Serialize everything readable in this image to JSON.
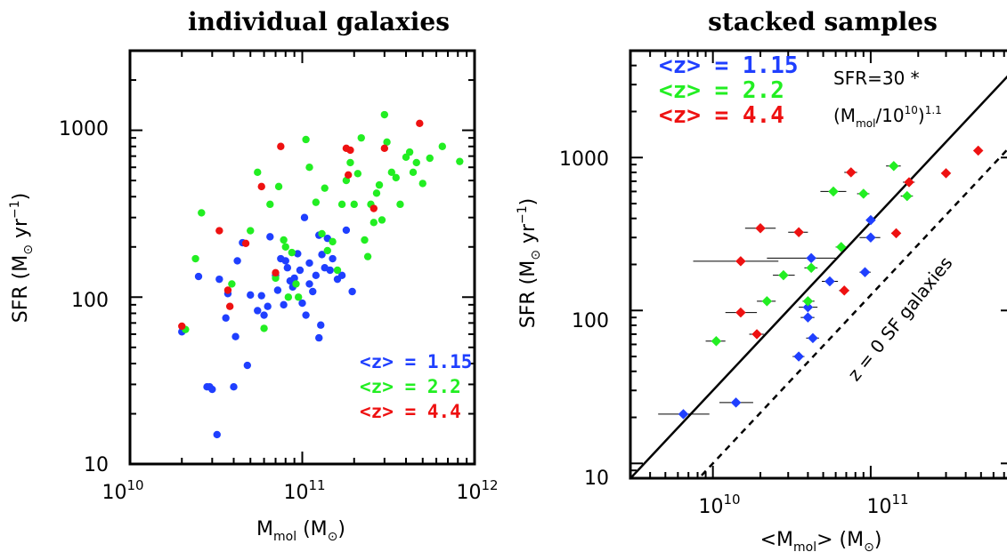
{
  "chart_data": [
    {
      "type": "scatter",
      "title": "individual galaxies",
      "xlabel": "M_mol (M_⊙)",
      "ylabel": "SFR (M_⊙ yr^-1)",
      "x_scale": "log",
      "y_scale": "log",
      "xlim": [
        10000000000.0,
        1000000000000.0
      ],
      "ylim": [
        10,
        3000
      ],
      "x_ticks": [
        "10^10",
        "10^11",
        "10^12"
      ],
      "y_ticks": [
        "10",
        "100",
        "1000"
      ],
      "legend": {
        "placement": "bottom-right",
        "entries": [
          "<z> = 1.15",
          "<z> = 2.2",
          "<z> = 4.4"
        ]
      },
      "series": [
        {
          "name": "<z> = 1.15",
          "color": "#1f3fff",
          "points": [
            [
              20000000000.0,
              62
            ],
            [
              25000000000.0,
              133
            ],
            [
              28000000000.0,
              29
            ],
            [
              29000000000.0,
              29
            ],
            [
              30000000000.0,
              28
            ],
            [
              32000000000.0,
              15
            ],
            [
              33000000000.0,
              128
            ],
            [
              36000000000.0,
              75
            ],
            [
              37000000000.0,
              105
            ],
            [
              40000000000.0,
              29
            ],
            [
              41000000000.0,
              58
            ],
            [
              42000000000.0,
              165
            ],
            [
              45000000000.0,
              212
            ],
            [
              48000000000.0,
              39
            ],
            [
              50000000000.0,
              103
            ],
            [
              55000000000.0,
              83
            ],
            [
              58000000000.0,
              102
            ],
            [
              60000000000.0,
              78
            ],
            [
              63000000000.0,
              88
            ],
            [
              65000000000.0,
              230
            ],
            [
              70000000000.0,
              135
            ],
            [
              72000000000.0,
              110
            ],
            [
              75000000000.0,
              170
            ],
            [
              78000000000.0,
              90
            ],
            [
              82000000000.0,
              150
            ],
            [
              85000000000.0,
              125
            ],
            [
              88000000000.0,
              115
            ],
            [
              90000000000.0,
              130
            ],
            [
              94000000000.0,
              182
            ],
            [
              97000000000.0,
              145
            ],
            [
              100000000000.0,
              92
            ],
            [
              103000000000.0,
              300
            ],
            [
              105000000000.0,
              78
            ],
            [
              110000000000.0,
              160
            ],
            [
              115000000000.0,
              108
            ],
            [
              120000000000.0,
              135
            ],
            [
              125000000000.0,
              57
            ],
            [
              128000000000.0,
              68
            ],
            [
              130000000000.0,
              180
            ],
            [
              135000000000.0,
              150
            ],
            [
              140000000000.0,
              225
            ],
            [
              145000000000.0,
              145
            ],
            [
              150000000000.0,
              170
            ],
            [
              160000000000.0,
              128
            ],
            [
              170000000000.0,
              135
            ],
            [
              180000000000.0,
              252
            ],
            [
              195000000000.0,
              108
            ],
            [
              125000000000.0,
              235
            ],
            [
              80000000000.0,
              165
            ],
            [
              110000000000.0,
              120
            ]
          ]
        },
        {
          "name": "<z> = 2.2",
          "color": "#22ee22",
          "points": [
            [
              21000000000.0,
              64
            ],
            [
              24000000000.0,
              170
            ],
            [
              26000000000.0,
              320
            ],
            [
              39000000000.0,
              120
            ],
            [
              50000000000.0,
              250
            ],
            [
              55000000000.0,
              560
            ],
            [
              60000000000.0,
              65
            ],
            [
              65000000000.0,
              360
            ],
            [
              70000000000.0,
              130
            ],
            [
              73000000000.0,
              460
            ],
            [
              78000000000.0,
              220
            ],
            [
              80000000000.0,
              200
            ],
            [
              83000000000.0,
              100
            ],
            [
              87000000000.0,
              185
            ],
            [
              92000000000.0,
              120
            ],
            [
              95000000000.0,
              100
            ],
            [
              105000000000.0,
              880
            ],
            [
              110000000000.0,
              600
            ],
            [
              120000000000.0,
              370
            ],
            [
              130000000000.0,
              240
            ],
            [
              135000000000.0,
              450
            ],
            [
              140000000000.0,
              190
            ],
            [
              150000000000.0,
              215
            ],
            [
              160000000000.0,
              145
            ],
            [
              170000000000.0,
              360
            ],
            [
              180000000000.0,
              500
            ],
            [
              190000000000.0,
              640
            ],
            [
              200000000000.0,
              360
            ],
            [
              210000000000.0,
              550
            ],
            [
              220000000000.0,
              900
            ],
            [
              230000000000.0,
              220
            ],
            [
              240000000000.0,
              175
            ],
            [
              250000000000.0,
              360
            ],
            [
              260000000000.0,
              280
            ],
            [
              270000000000.0,
              420
            ],
            [
              280000000000.0,
              470
            ],
            [
              290000000000.0,
              290
            ],
            [
              300000000000.0,
              1240
            ],
            [
              310000000000.0,
              850
            ],
            [
              330000000000.0,
              560
            ],
            [
              350000000000.0,
              520
            ],
            [
              370000000000.0,
              360
            ],
            [
              400000000000.0,
              690
            ],
            [
              420000000000.0,
              740
            ],
            [
              440000000000.0,
              560
            ],
            [
              460000000000.0,
              640
            ],
            [
              500000000000.0,
              480
            ],
            [
              550000000000.0,
              680
            ],
            [
              650000000000.0,
              800
            ],
            [
              820000000000.0,
              650
            ]
          ]
        },
        {
          "name": "<z> = 4.4",
          "color": "#ee1111",
          "points": [
            [
              20000000000.0,
              67
            ],
            [
              33000000000.0,
              250
            ],
            [
              37000000000.0,
              110
            ],
            [
              38000000000.0,
              88
            ],
            [
              47000000000.0,
              210
            ],
            [
              58000000000.0,
              460
            ],
            [
              70000000000.0,
              140
            ],
            [
              75000000000.0,
              800
            ],
            [
              180000000000.0,
              780
            ],
            [
              190000000000.0,
              760
            ],
            [
              185000000000.0,
              540
            ],
            [
              300000000000.0,
              780
            ],
            [
              260000000000.0,
              340
            ],
            [
              480000000000.0,
              1100
            ]
          ]
        }
      ]
    },
    {
      "type": "scatter",
      "title": "stacked samples",
      "xlabel": "<M_mol> (M_⊙)",
      "ylabel": "SFR (M_⊙ yr^-1)",
      "x_scale": "log",
      "y_scale": "log",
      "xlim": [
        3000000000.0,
        800000000000.0
      ],
      "ylim": [
        8,
        5000
      ],
      "x_ticks": [
        "10^10",
        "10^11"
      ],
      "y_ticks": [
        "10",
        "100",
        "1000"
      ],
      "legend": {
        "placement": "top-left",
        "entries": [
          "<z> = 1.15",
          "<z> = 2.2",
          "<z> = 4.4"
        ]
      },
      "annotations": [
        "SFR=30 *",
        "(M_mol/10^10)^1.1",
        "z = 0 SF galaxies"
      ],
      "lines": [
        {
          "name": "SFR=30 * (M_mol/10^10)^1.1",
          "style": "solid",
          "norm": 30,
          "slope": 1.1
        },
        {
          "name": "z = 0 SF galaxies",
          "style": "dashed",
          "norm": 10,
          "slope": 1.1
        }
      ],
      "series": [
        {
          "name": "<z> = 1.15",
          "color": "#1f3fff",
          "points": [
            [
              6500000000.0,
              21,
              4500000000.0,
              9500000000.0
            ],
            [
              14000000000.0,
              25,
              11000000000.0,
              18000000000.0
            ],
            [
              35000000000.0,
              50,
              32000000000.0,
              38000000000.0
            ],
            [
              43000000000.0,
              66,
              39000000000.0,
              47000000000.0
            ],
            [
              40000000000.0,
              90,
              36000000000.0,
              44000000000.0
            ],
            [
              40000000000.0,
              105,
              35000000000.0,
              46000000000.0
            ],
            [
              55000000000.0,
              155,
              49000000000.0,
              62000000000.0
            ],
            [
              42000000000.0,
              220,
              22000000000.0,
              60000000000.0
            ],
            [
              92000000000.0,
              178,
              85000000000.0,
              100000000000.0
            ],
            [
              100000000000.0,
              300,
              85000000000.0,
              115000000000.0
            ],
            [
              100000000000.0,
              390,
              95000000000.0,
              105000000000.0
            ]
          ]
        },
        {
          "name": "<z> = 2.2",
          "color": "#22ee22",
          "points": [
            [
              10500000000.0,
              63,
              9000000000.0,
              12000000000.0
            ],
            [
              22000000000.0,
              115,
              19000000000.0,
              25000000000.0
            ],
            [
              28000000000.0,
              170,
              24000000000.0,
              33000000000.0
            ],
            [
              40000000000.0,
              115,
              37000000000.0,
              44000000000.0
            ],
            [
              42000000000.0,
              190,
              38000000000.0,
              46000000000.0
            ],
            [
              58000000000.0,
              600,
              48000000000.0,
              70000000000.0
            ],
            [
              65000000000.0,
              260,
              60000000000.0,
              70000000000.0
            ],
            [
              90000000000.0,
              580,
              82000000000.0,
              98000000000.0
            ],
            [
              140000000000.0,
              880,
              125000000000.0,
              155000000000.0
            ],
            [
              170000000000.0,
              560,
              155000000000.0,
              185000000000.0
            ]
          ]
        },
        {
          "name": "<z> = 4.4",
          "color": "#ee1111",
          "points": [
            [
              15000000000.0,
              210,
              7500000000.0,
              26000000000.0
            ],
            [
              15000000000.0,
              97,
              12000000000.0,
              19000000000.0
            ],
            [
              19000000000.0,
              70,
              17000000000.0,
              21000000000.0
            ],
            [
              20000000000.0,
              345,
              16000000000.0,
              25000000000.0
            ],
            [
              35000000000.0,
              325,
              30000000000.0,
              40000000000.0
            ],
            [
              68000000000.0,
              135,
              63000000000.0,
              73000000000.0
            ],
            [
              75000000000.0,
              800,
              68000000000.0,
              82000000000.0
            ],
            [
              145000000000.0,
              320,
              135000000000.0,
              155000000000.0
            ],
            [
              175000000000.0,
              690,
              160000000000.0,
              190000000000.0
            ],
            [
              300000000000.0,
              790,
              280000000000.0,
              320000000000.0
            ],
            [
              480000000000.0,
              1110,
              450000000000.0,
              510000000000.0
            ]
          ]
        }
      ]
    }
  ]
}
